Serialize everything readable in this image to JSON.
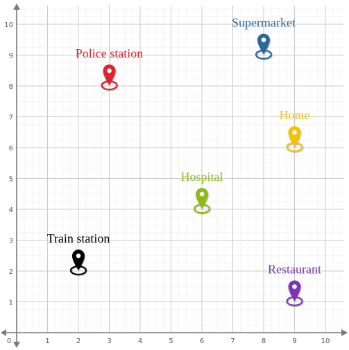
{
  "x_ticks": [
    "0",
    "1",
    "2",
    "3",
    "4",
    "5",
    "6",
    "7",
    "8",
    "9",
    "10"
  ],
  "y_ticks": [
    "1",
    "2",
    "3",
    "4",
    "5",
    "6",
    "7",
    "8",
    "9",
    "10"
  ],
  "places": [
    {
      "name": "Police station",
      "x": 3,
      "y": 8.2,
      "color": "#e0202f"
    },
    {
      "name": "Supermarket",
      "x": 8,
      "y": 9.2,
      "color": "#2a6a96"
    },
    {
      "name": "Home",
      "x": 9,
      "y": 6.2,
      "color": "#f2c400"
    },
    {
      "name": "Hospital",
      "x": 6,
      "y": 4.2,
      "color": "#8dbb1f"
    },
    {
      "name": "Train station",
      "x": 2,
      "y": 2.2,
      "color": "#000000"
    },
    {
      "name": "Restaurant",
      "x": 9,
      "y": 1.2,
      "color": "#7a35b8"
    }
  ],
  "icon": "map-pin-icon"
}
